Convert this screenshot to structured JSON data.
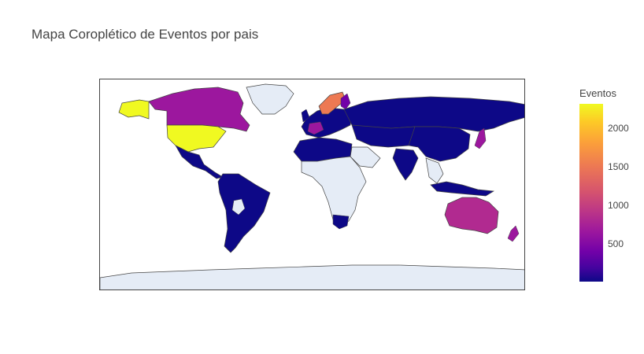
{
  "title": "Mapa Coroplético de Eventos por pais",
  "colorbar": {
    "title": "Eventos",
    "ticks": [
      "2000",
      "1500",
      "1000",
      "500"
    ],
    "tick_values": [
      2000,
      1500,
      1000,
      500
    ],
    "range": [
      0,
      2300
    ],
    "colorscale": "plasma"
  },
  "colors": {
    "no_data": "#e5ecf6",
    "border": "#444444",
    "usa": "#f0f921",
    "canada": "#9c179e",
    "australia": "#b12a90",
    "sweden_norway": "#ed7953",
    "low": "#0d0887"
  },
  "map_data": {
    "type": "choropleth",
    "projection": "equirectangular"
  }
}
